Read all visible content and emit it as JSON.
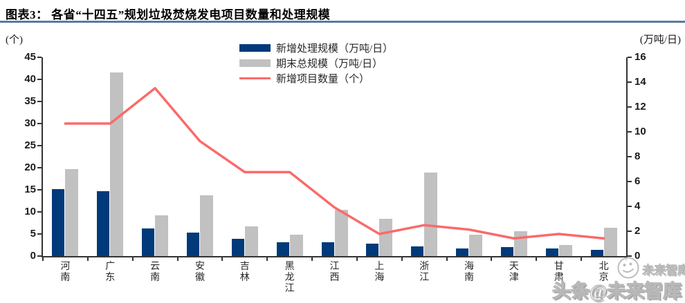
{
  "header": {
    "title": "图表3：  各省“十四五”规划垃圾焚烧发电项目数量和处理规模"
  },
  "chart_data": {
    "type": "bar",
    "subtype": "dual-axis combo: grouped bars + line",
    "title": "各省“十四五”规划垃圾焚烧发电项目数量和处理规模",
    "categories": [
      "河南",
      "广东",
      "云南",
      "安徽",
      "吉林",
      "黑龙江",
      "江西",
      "上海",
      "浙江",
      "海南",
      "天津",
      "甘肃",
      "北京"
    ],
    "series": [
      {
        "name": "新增处理规模（万吨/日）",
        "type": "bar",
        "axis": "right",
        "color": "#003a7a",
        "values": [
          5.4,
          5.2,
          2.2,
          1.9,
          1.4,
          1.1,
          1.1,
          1.0,
          0.8,
          0.6,
          0.7,
          0.6,
          0.5
        ]
      },
      {
        "name": "期末总规模（万吨/日）",
        "type": "bar",
        "axis": "right",
        "color": "#c1c1c1",
        "values": [
          7.0,
          14.8,
          3.3,
          4.9,
          2.4,
          1.7,
          3.7,
          3.0,
          6.7,
          1.7,
          2.0,
          0.9,
          2.3
        ]
      },
      {
        "name": "新增项目数量（个）",
        "type": "line",
        "axis": "left",
        "color": "#fb6a6a",
        "values": [
          30,
          30,
          38,
          26,
          19,
          19,
          11,
          5,
          7,
          6,
          4,
          5,
          4
        ]
      }
    ],
    "left_axis": {
      "label": "(个)",
      "min": 0,
      "max": 45,
      "step": 5
    },
    "right_axis": {
      "label": "(万吨/日)",
      "min": 0,
      "max": 16,
      "step": 2
    },
    "legend_position": "top-center",
    "grid": false
  },
  "watermark": {
    "line1": "未来智库",
    "line2": "头条@未来智库"
  },
  "colors": {
    "bar_new": "#003a7a",
    "bar_total": "#c1c1c1",
    "line_projects": "#fb6a6a",
    "title_rule": "#567ba1",
    "axis_text": "#1a1a1a",
    "watermark_gray": "#b8b8b8"
  }
}
